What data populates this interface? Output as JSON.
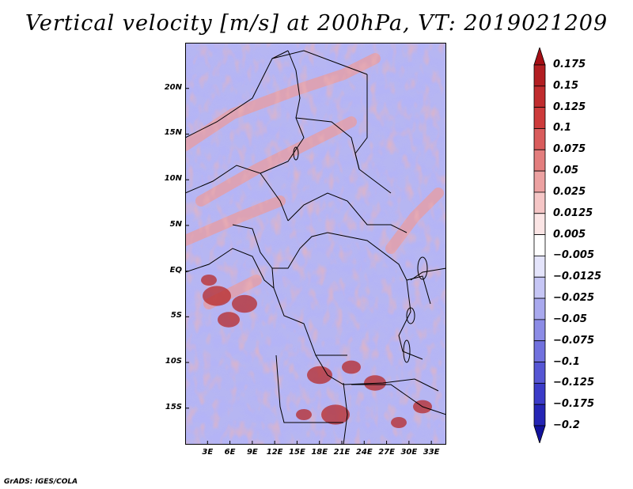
{
  "title": "Vertical velocity [m/s] at 200hPa, VT: 2019021209",
  "footer": "GrADS: IGES/COLA",
  "map": {
    "variable": "Vertical velocity",
    "units": "m/s",
    "level": "200hPa",
    "valid_time": "2019021209",
    "region": "Central and Southern Africa",
    "lat_range": [
      -19,
      25
    ],
    "lon_range": [
      0,
      35
    ],
    "lat_labels": [
      "20N",
      "15N",
      "10N",
      "5N",
      "EQ",
      "5S",
      "10S",
      "15S"
    ],
    "lat_values": [
      20,
      15,
      10,
      5,
      0,
      -5,
      -10,
      -15
    ],
    "lon_labels": [
      "3E",
      "6E",
      "9E",
      "12E",
      "15E",
      "18E",
      "21E",
      "24E",
      "27E",
      "30E",
      "33E"
    ],
    "lon_values": [
      3,
      6,
      9,
      12,
      15,
      18,
      21,
      24,
      27,
      30,
      33
    ]
  },
  "colorbar": {
    "labels": [
      "0.175",
      "0.15",
      "0.125",
      "0.1",
      "0.075",
      "0.05",
      "0.025",
      "0.0125",
      "0.005",
      "−0.005",
      "−0.0125",
      "−0.025",
      "−0.05",
      "−0.075",
      "−0.1",
      "−0.125",
      "−0.175",
      "−0.2"
    ],
    "colors": [
      "#a50f15",
      "#b21e22",
      "#c02c2e",
      "#cd3b3b",
      "#d95c5c",
      "#e37e7e",
      "#eca1a1",
      "#f5c6c6",
      "#fbe5e5",
      "#ffffff",
      "#e4e4fb",
      "#c6c6f5",
      "#a9a9ee",
      "#8c8ce6",
      "#7171de",
      "#5656d4",
      "#3b3bc8",
      "#2525b5",
      "#12129c"
    ]
  }
}
